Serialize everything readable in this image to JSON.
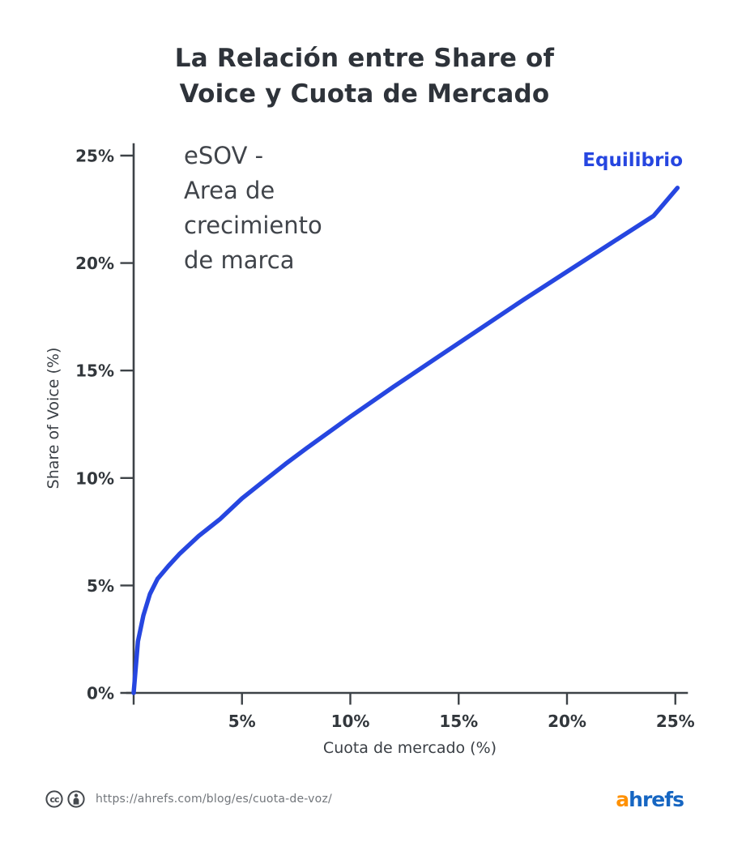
{
  "title": {
    "text": "La Relación entre Share of Voice y Cuota de Mercado",
    "lines": [
      "La Relación entre Share of",
      "Voice y Cuota de Mercado"
    ]
  },
  "annotation": {
    "lines": [
      "eSOV -",
      "Area de",
      "crecimiento",
      "de marca"
    ]
  },
  "equilibrium_label": "Equilibrio",
  "chart_data": {
    "type": "line",
    "title": "La Relación entre Share of Voice y Cuota de Mercado",
    "xlabel": "Cuota de mercado (%)",
    "ylabel": "Share of Voice (%)",
    "xlim": [
      0,
      25.6
    ],
    "ylim": [
      0,
      25.8
    ],
    "grid": false,
    "legend": "none",
    "xticks": {
      "values": [
        0,
        5,
        10,
        15,
        20,
        25
      ],
      "labels": [
        "",
        "5%",
        "10%",
        "15%",
        "20%",
        "25%"
      ]
    },
    "yticks": {
      "values": [
        0,
        5,
        10,
        15,
        20,
        25
      ],
      "labels": [
        "0%",
        "5%",
        "10%",
        "15%",
        "20%",
        "25%"
      ]
    },
    "series": [
      {
        "name": "Equilibrio",
        "color": "#2646e0",
        "x": [
          0,
          0.2,
          0.45,
          0.75,
          1.1,
          1.6,
          2.1,
          3,
          4,
          5,
          6,
          7,
          8,
          10,
          12,
          14,
          16,
          18,
          20,
          22,
          24,
          25.1
        ],
        "y": [
          0,
          2.4,
          3.6,
          4.6,
          5.3,
          5.9,
          6.45,
          7.3,
          8.1,
          9.05,
          9.85,
          10.65,
          11.4,
          12.85,
          14.25,
          15.6,
          16.95,
          18.3,
          19.6,
          20.9,
          22.2,
          23.5
        ]
      }
    ],
    "annotations": [
      {
        "text": "eSOV - Area de crecimiento de marca",
        "position": "upper-left",
        "color": "#40444a"
      },
      {
        "text": "Equilibrio",
        "position": "upper-right",
        "color": "#2646e0"
      }
    ]
  },
  "footer": {
    "cc_text": "cc",
    "url": "https://ahrefs.com/blog/es/cuota-de-voz/",
    "logo": {
      "prefix": "a",
      "suffix": "hrefs",
      "prefix_color": "#ff9103",
      "suffix_color": "#1666c2"
    }
  },
  "colors": {
    "curve": "#2646e0",
    "title_text": "#2e333a",
    "axis": "#3d4247",
    "url_text": "#72767b"
  }
}
